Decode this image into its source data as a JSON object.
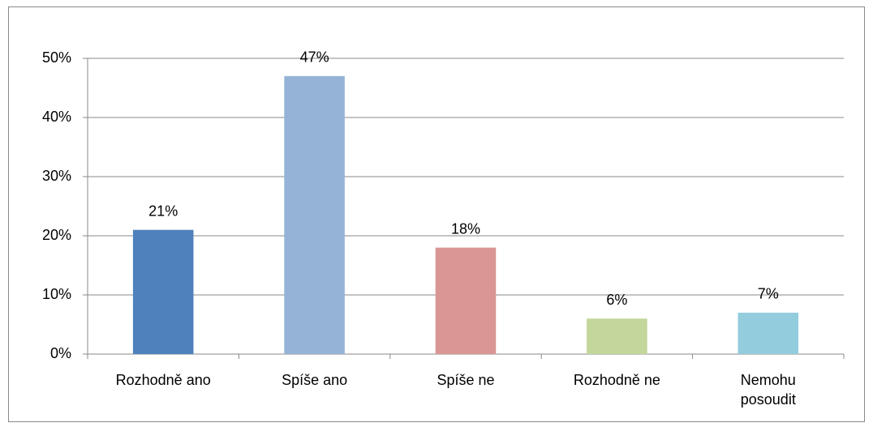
{
  "chart_data": {
    "type": "bar",
    "categories": [
      "Rozhodně ano",
      "Spíše ano",
      "Spíše ne",
      "Rozhodně ne",
      "Nemohu posoudit"
    ],
    "values": [
      21,
      47,
      18,
      6,
      7
    ],
    "value_labels": [
      "21%",
      "47%",
      "18%",
      "6%",
      "7%"
    ],
    "colors": [
      "#4f81bd",
      "#95b3d7",
      "#d99694",
      "#c3d69b",
      "#93cddd"
    ],
    "ylim": [
      0,
      50
    ],
    "yticks": [
      {
        "value": 0,
        "label": "0%"
      },
      {
        "value": 10,
        "label": "10%"
      },
      {
        "value": 20,
        "label": "20%"
      },
      {
        "value": 30,
        "label": "30%"
      },
      {
        "value": 40,
        "label": "40%"
      },
      {
        "value": 50,
        "label": "50%"
      }
    ],
    "grid": true
  }
}
